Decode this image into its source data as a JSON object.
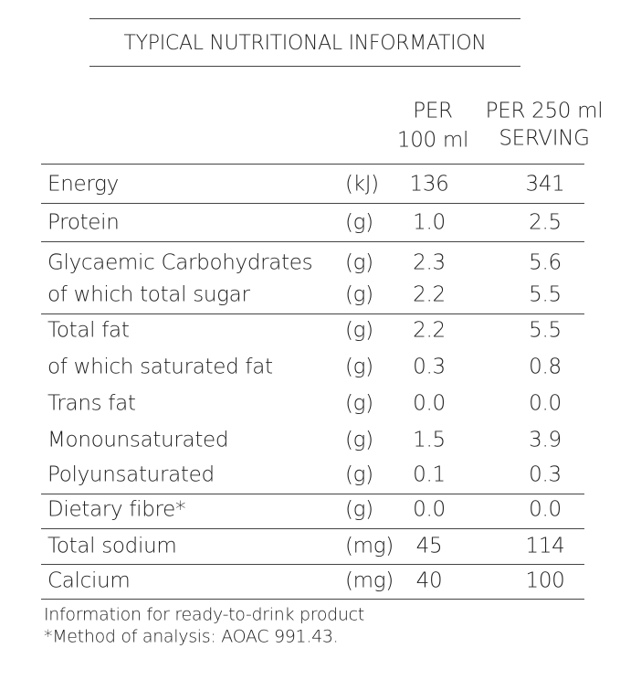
{
  "header": {
    "title": "TYPICAL NUTRITIONAL INFORMATION"
  },
  "table": {
    "columns": [
      "PER 100 ml",
      "PER 250 ml SERVING"
    ],
    "column_lines": [
      [
        "PER",
        "100 ml"
      ],
      [
        "PER 250 ml",
        "SERVING"
      ]
    ],
    "rows": [
      [
        "Energy",
        "(kJ)",
        "136",
        "341"
      ],
      [
        "Protein",
        "(g)",
        "1.0",
        "2.5"
      ],
      [
        "Glycaemic Carbohydrates",
        "(g)",
        "2.3",
        "5.6"
      ],
      [
        "of which total sugar",
        "(g)",
        "2.2",
        "5.5"
      ],
      [
        "Total fat",
        "(g)",
        "2.2",
        "5.5"
      ],
      [
        "of which saturated fat",
        "(g)",
        "0.3",
        "0.8"
      ],
      [
        "Trans fat",
        "(g)",
        "0.0",
        "0.0"
      ],
      [
        "Monounsaturated",
        "(g)",
        "1.5",
        "3.9"
      ],
      [
        "Polyunsaturated",
        "(g)",
        "0.1",
        "0.3"
      ],
      [
        "Dietary fibre*",
        "(g)",
        "0.0",
        "0.0"
      ],
      [
        "Total sodium",
        "(mg)",
        "45",
        "114"
      ],
      [
        "Calcium",
        "(mg)",
        "40",
        "100"
      ]
    ]
  },
  "footnotes": [
    "Information for ready-to-drink product",
    "*Method of analysis: AOAC 991.43."
  ]
}
